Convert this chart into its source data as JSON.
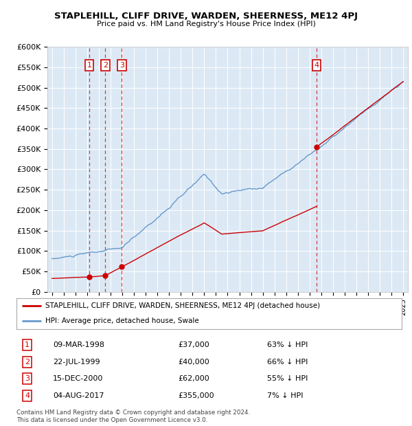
{
  "title": "STAPLEHILL, CLIFF DRIVE, WARDEN, SHEERNESS, ME12 4PJ",
  "subtitle": "Price paid vs. HM Land Registry's House Price Index (HPI)",
  "hpi_color": "#6699cc",
  "price_color": "#cc0000",
  "plot_bg": "#dce9f5",
  "ylim": [
    0,
    600000
  ],
  "yticks": [
    0,
    50000,
    100000,
    150000,
    200000,
    250000,
    300000,
    350000,
    400000,
    450000,
    500000,
    550000,
    600000
  ],
  "xlim_start": 1994.6,
  "xlim_end": 2025.4,
  "sale_dates": [
    1998.19,
    1999.55,
    2000.96,
    2017.59
  ],
  "sale_prices": [
    37000,
    40000,
    62000,
    355000
  ],
  "sale_labels": [
    "1",
    "2",
    "3",
    "4"
  ],
  "legend_red": "STAPLEHILL, CLIFF DRIVE, WARDEN, SHEERNESS, ME12 4PJ (detached house)",
  "legend_blue": "HPI: Average price, detached house, Swale",
  "table_data": [
    [
      "1",
      "09-MAR-1998",
      "£37,000",
      "63% ↓ HPI"
    ],
    [
      "2",
      "22-JUL-1999",
      "£40,000",
      "66% ↓ HPI"
    ],
    [
      "3",
      "15-DEC-2000",
      "£62,000",
      "55% ↓ HPI"
    ],
    [
      "4",
      "04-AUG-2017",
      "£355,000",
      "7% ↓ HPI"
    ]
  ],
  "footnote": "Contains HM Land Registry data © Crown copyright and database right 2024.\nThis data is licensed under the Open Government Licence v3.0."
}
